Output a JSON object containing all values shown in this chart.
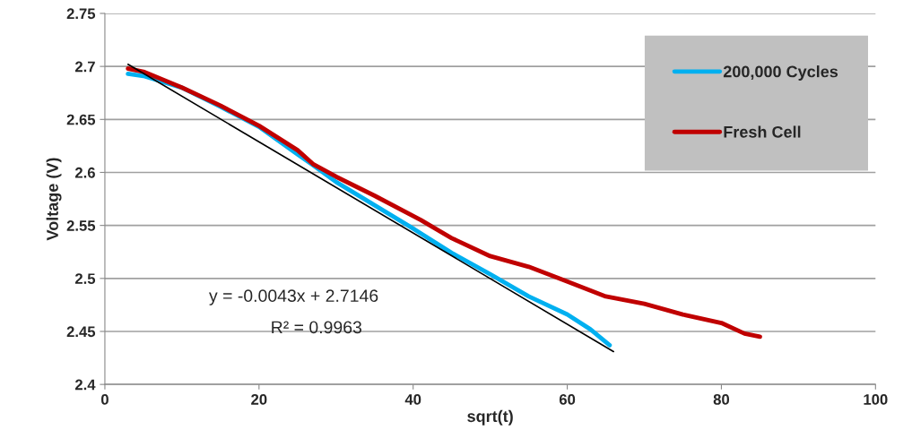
{
  "chart_data": {
    "type": "line",
    "xlabel": "sqrt(t)",
    "ylabel": "Voltage (V)",
    "xlim": [
      0,
      100
    ],
    "xticks": [
      0,
      20,
      40,
      60,
      80,
      100
    ],
    "ylim": [
      2.4,
      2.75
    ],
    "yticks": [
      2.4,
      2.45,
      2.5,
      2.55,
      2.6,
      2.65,
      2.7,
      2.75
    ],
    "grid": "y",
    "legend": "top right",
    "series": [
      {
        "name": "200,000 Cycles",
        "color": "#00b0f0",
        "x": [
          3,
          5,
          10,
          15,
          20,
          25,
          27,
          30,
          35,
          40,
          45,
          50,
          55,
          60,
          63,
          65.5
        ],
        "values": [
          2.693,
          2.691,
          2.68,
          2.662,
          2.643,
          2.617,
          2.607,
          2.591,
          2.569,
          2.547,
          2.524,
          2.504,
          2.483,
          2.466,
          2.452,
          2.437
        ]
      },
      {
        "name": "Fresh Cell",
        "color": "#c00000",
        "x": [
          3,
          5,
          10,
          15,
          20,
          25,
          27,
          30,
          35,
          41,
          45,
          50,
          55,
          60,
          65,
          70,
          75,
          80,
          83,
          85
        ],
        "values": [
          2.698,
          2.695,
          2.68,
          2.663,
          2.644,
          2.621,
          2.608,
          2.596,
          2.578,
          2.555,
          2.538,
          2.521,
          2.511,
          2.497,
          2.483,
          2.476,
          2.466,
          2.458,
          2.448,
          2.445
        ]
      },
      {
        "type": "line",
        "color": "#000000",
        "x": [
          3,
          66
        ],
        "values": [
          2.702,
          2.431
        ]
      }
    ],
    "annotations": [
      "y = -0.0043x + 2.7146",
      "R² = 0.9963"
    ]
  }
}
